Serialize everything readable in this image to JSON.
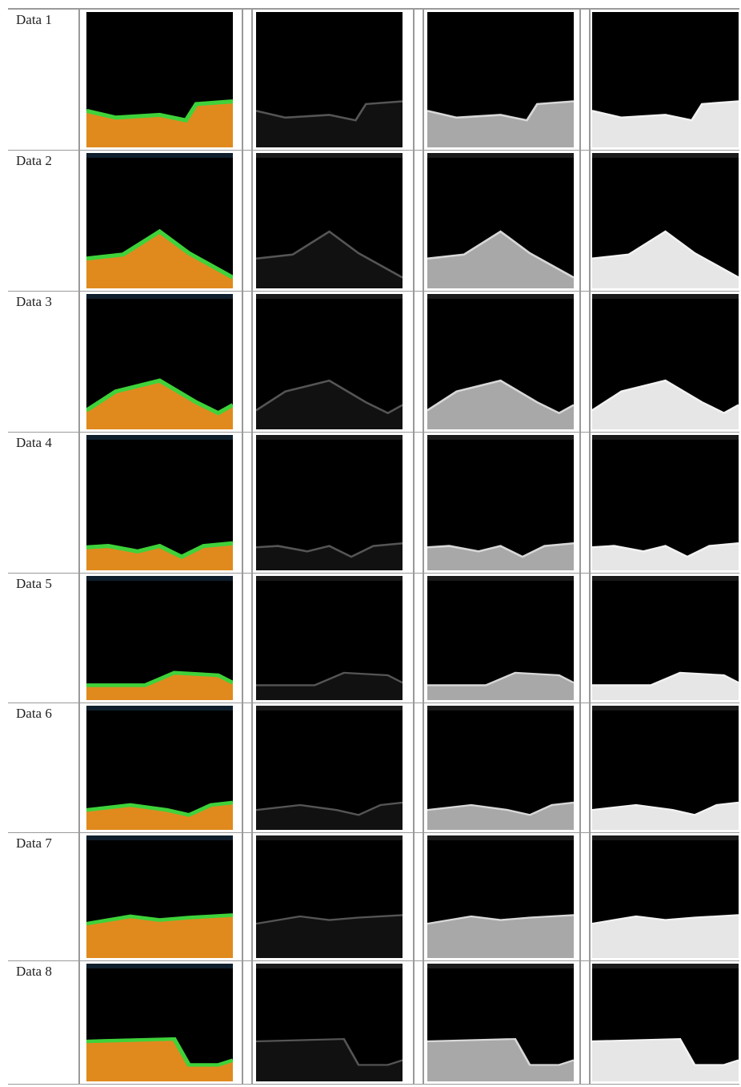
{
  "figure": {
    "rows": [
      {
        "label": "Data 1"
      },
      {
        "label": "Data 2"
      },
      {
        "label": "Data 3"
      },
      {
        "label": "Data 4"
      },
      {
        "label": "Data 5"
      },
      {
        "label": "Data 6"
      },
      {
        "label": "Data 7"
      },
      {
        "label": "Data 8"
      }
    ],
    "panel_styles": [
      {
        "fill": "#e08a1e",
        "edge": "#3fd23a"
      },
      {
        "fill": "#111111",
        "edge": "#555555"
      },
      {
        "fill": "#a8a8a8",
        "edge": "#d8d8d8"
      },
      {
        "fill": "#e6e6e6",
        "edge": "#f2f2f2"
      }
    ]
  }
}
